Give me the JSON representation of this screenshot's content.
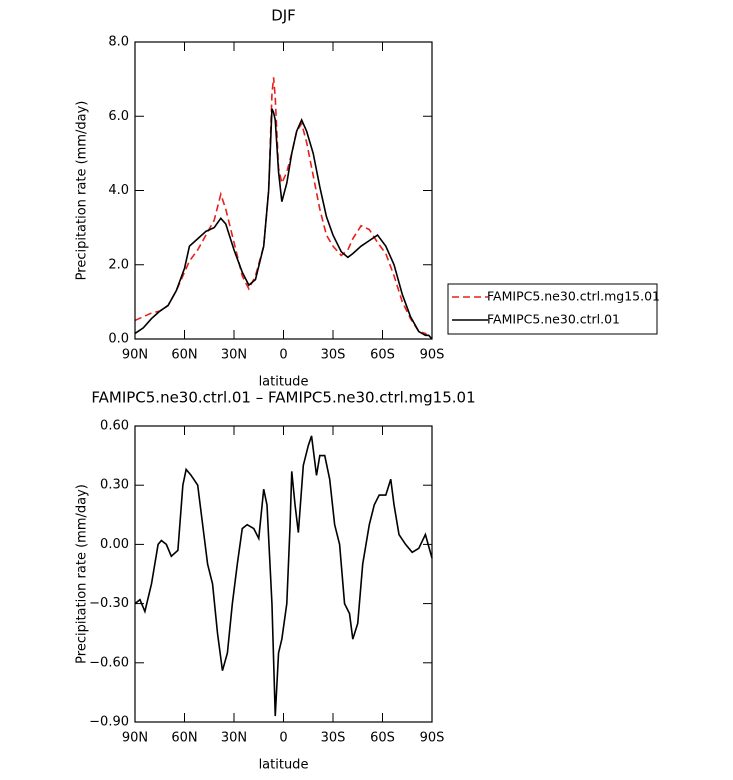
{
  "chart_data": [
    {
      "type": "line",
      "title": "DJF",
      "xlabel": "latitude",
      "ylabel": "Precipitation rate (mm/day)",
      "x": [
        90,
        85,
        80,
        75,
        70,
        65,
        60,
        57,
        52,
        47,
        42,
        38,
        35,
        30,
        25,
        21,
        17,
        12,
        9,
        7,
        6,
        5,
        3,
        1,
        -2,
        -5,
        -8,
        -11,
        -14,
        -18,
        -22,
        -26,
        -30,
        -35,
        -39,
        -42,
        -47,
        -52,
        -57,
        -62,
        -67,
        -72,
        -77,
        -82,
        -86,
        -88,
        -90
      ],
      "xlim": [
        90,
        -90
      ],
      "xticks": [
        {
          "value": 90,
          "label": "90N"
        },
        {
          "value": 60,
          "label": "60N"
        },
        {
          "value": 30,
          "label": "30N"
        },
        0,
        {
          "value": -30,
          "label": "30S"
        },
        {
          "value": -60,
          "label": "60S"
        },
        {
          "value": -90,
          "label": "90S"
        }
      ],
      "ylim": [
        0,
        8
      ],
      "yticks": [
        {
          "value": 0,
          "label": "0.0"
        },
        {
          "value": 2,
          "label": "2.0"
        },
        {
          "value": 4,
          "label": "4.0"
        },
        {
          "value": 6,
          "label": "6.0"
        },
        {
          "value": 8,
          "label": "8.0"
        }
      ],
      "series": [
        {
          "name": "FAMIPC5.ne30.ctrl.mg15.01",
          "color": "#e8201c",
          "dash": true,
          "values": [
            0.5,
            0.6,
            0.7,
            0.75,
            0.9,
            1.3,
            1.8,
            2.1,
            2.4,
            2.8,
            3.2,
            3.9,
            3.5,
            2.6,
            1.7,
            1.35,
            1.7,
            2.5,
            4.0,
            6.6,
            7.05,
            6.5,
            4.6,
            4.2,
            4.5,
            5.0,
            5.6,
            5.8,
            5.3,
            4.4,
            3.5,
            2.8,
            2.5,
            2.25,
            2.4,
            2.7,
            3.05,
            2.95,
            2.6,
            2.3,
            1.7,
            1.0,
            0.55,
            0.2,
            0.15,
            0.05,
            0.0
          ]
        },
        {
          "name": "FAMIPC5.ne30.ctrl.01",
          "color": "#000000",
          "dash": false,
          "values": [
            0.15,
            0.3,
            0.55,
            0.75,
            0.9,
            1.3,
            1.9,
            2.5,
            2.7,
            2.9,
            3.0,
            3.25,
            3.1,
            2.4,
            1.8,
            1.45,
            1.6,
            2.5,
            4.0,
            6.2,
            6.1,
            5.9,
            4.5,
            3.7,
            4.2,
            5.0,
            5.6,
            5.9,
            5.6,
            5.0,
            4.1,
            3.3,
            2.8,
            2.35,
            2.2,
            2.3,
            2.5,
            2.65,
            2.8,
            2.5,
            2.0,
            1.2,
            0.6,
            0.2,
            0.1,
            0.1,
            0.0
          ]
        }
      ]
    },
    {
      "type": "line",
      "title": "FAMIPC5.ne30.ctrl.01 – FAMIPC5.ne30.ctrl.mg15.01",
      "xlabel": "latitude",
      "ylabel": "Precipitation rate (mm/day)",
      "x": [
        90,
        87,
        84,
        80,
        76,
        74,
        71,
        68,
        64,
        61,
        59,
        56,
        52,
        49,
        46,
        43,
        40,
        37,
        34,
        31,
        28,
        25,
        22,
        18,
        15,
        12,
        10,
        7,
        5,
        3,
        1,
        -2,
        -4,
        -5,
        -7,
        -9,
        -12,
        -15,
        -17,
        -20,
        -22,
        -25,
        -28,
        -31,
        -34,
        -37,
        -40,
        -42,
        -45,
        -48,
        -52,
        -55,
        -58,
        -62,
        -65,
        -67,
        -70,
        -74,
        -78,
        -82,
        -86,
        -90
      ],
      "xlim": [
        90,
        -90
      ],
      "xticks": [
        {
          "value": 90,
          "label": "90N"
        },
        {
          "value": 60,
          "label": "60N"
        },
        {
          "value": 30,
          "label": "30N"
        },
        0,
        {
          "value": -30,
          "label": "30S"
        },
        {
          "value": -60,
          "label": "60S"
        },
        {
          "value": -90,
          "label": "90S"
        }
      ],
      "ylim": [
        -0.9,
        0.6
      ],
      "yticks": [
        {
          "value": -0.9,
          "label": "−0.90"
        },
        {
          "value": -0.6,
          "label": "−0.60"
        },
        {
          "value": -0.3,
          "label": "−0.30"
        },
        {
          "value": 0,
          "label": "0.00"
        },
        {
          "value": 0.3,
          "label": "0.30"
        },
        {
          "value": 0.6,
          "label": "0.60"
        }
      ],
      "series": [
        {
          "color": "#000000",
          "dash": false,
          "values": [
            -0.3,
            -0.28,
            -0.34,
            -0.2,
            0.0,
            0.02,
            0.0,
            -0.06,
            -0.03,
            0.3,
            0.38,
            0.35,
            0.3,
            0.1,
            -0.1,
            -0.2,
            -0.45,
            -0.64,
            -0.55,
            -0.3,
            -0.1,
            0.08,
            0.1,
            0.08,
            0.03,
            0.28,
            0.2,
            -0.3,
            -0.87,
            -0.55,
            -0.48,
            -0.3,
            0.1,
            0.37,
            0.2,
            0.06,
            0.4,
            0.5,
            0.55,
            0.35,
            0.45,
            0.45,
            0.33,
            0.1,
            0.0,
            -0.3,
            -0.35,
            -0.48,
            -0.4,
            -0.1,
            0.1,
            0.2,
            0.25,
            0.25,
            0.33,
            0.2,
            0.05,
            0.0,
            -0.04,
            -0.02,
            0.05,
            -0.07
          ]
        }
      ]
    }
  ]
}
